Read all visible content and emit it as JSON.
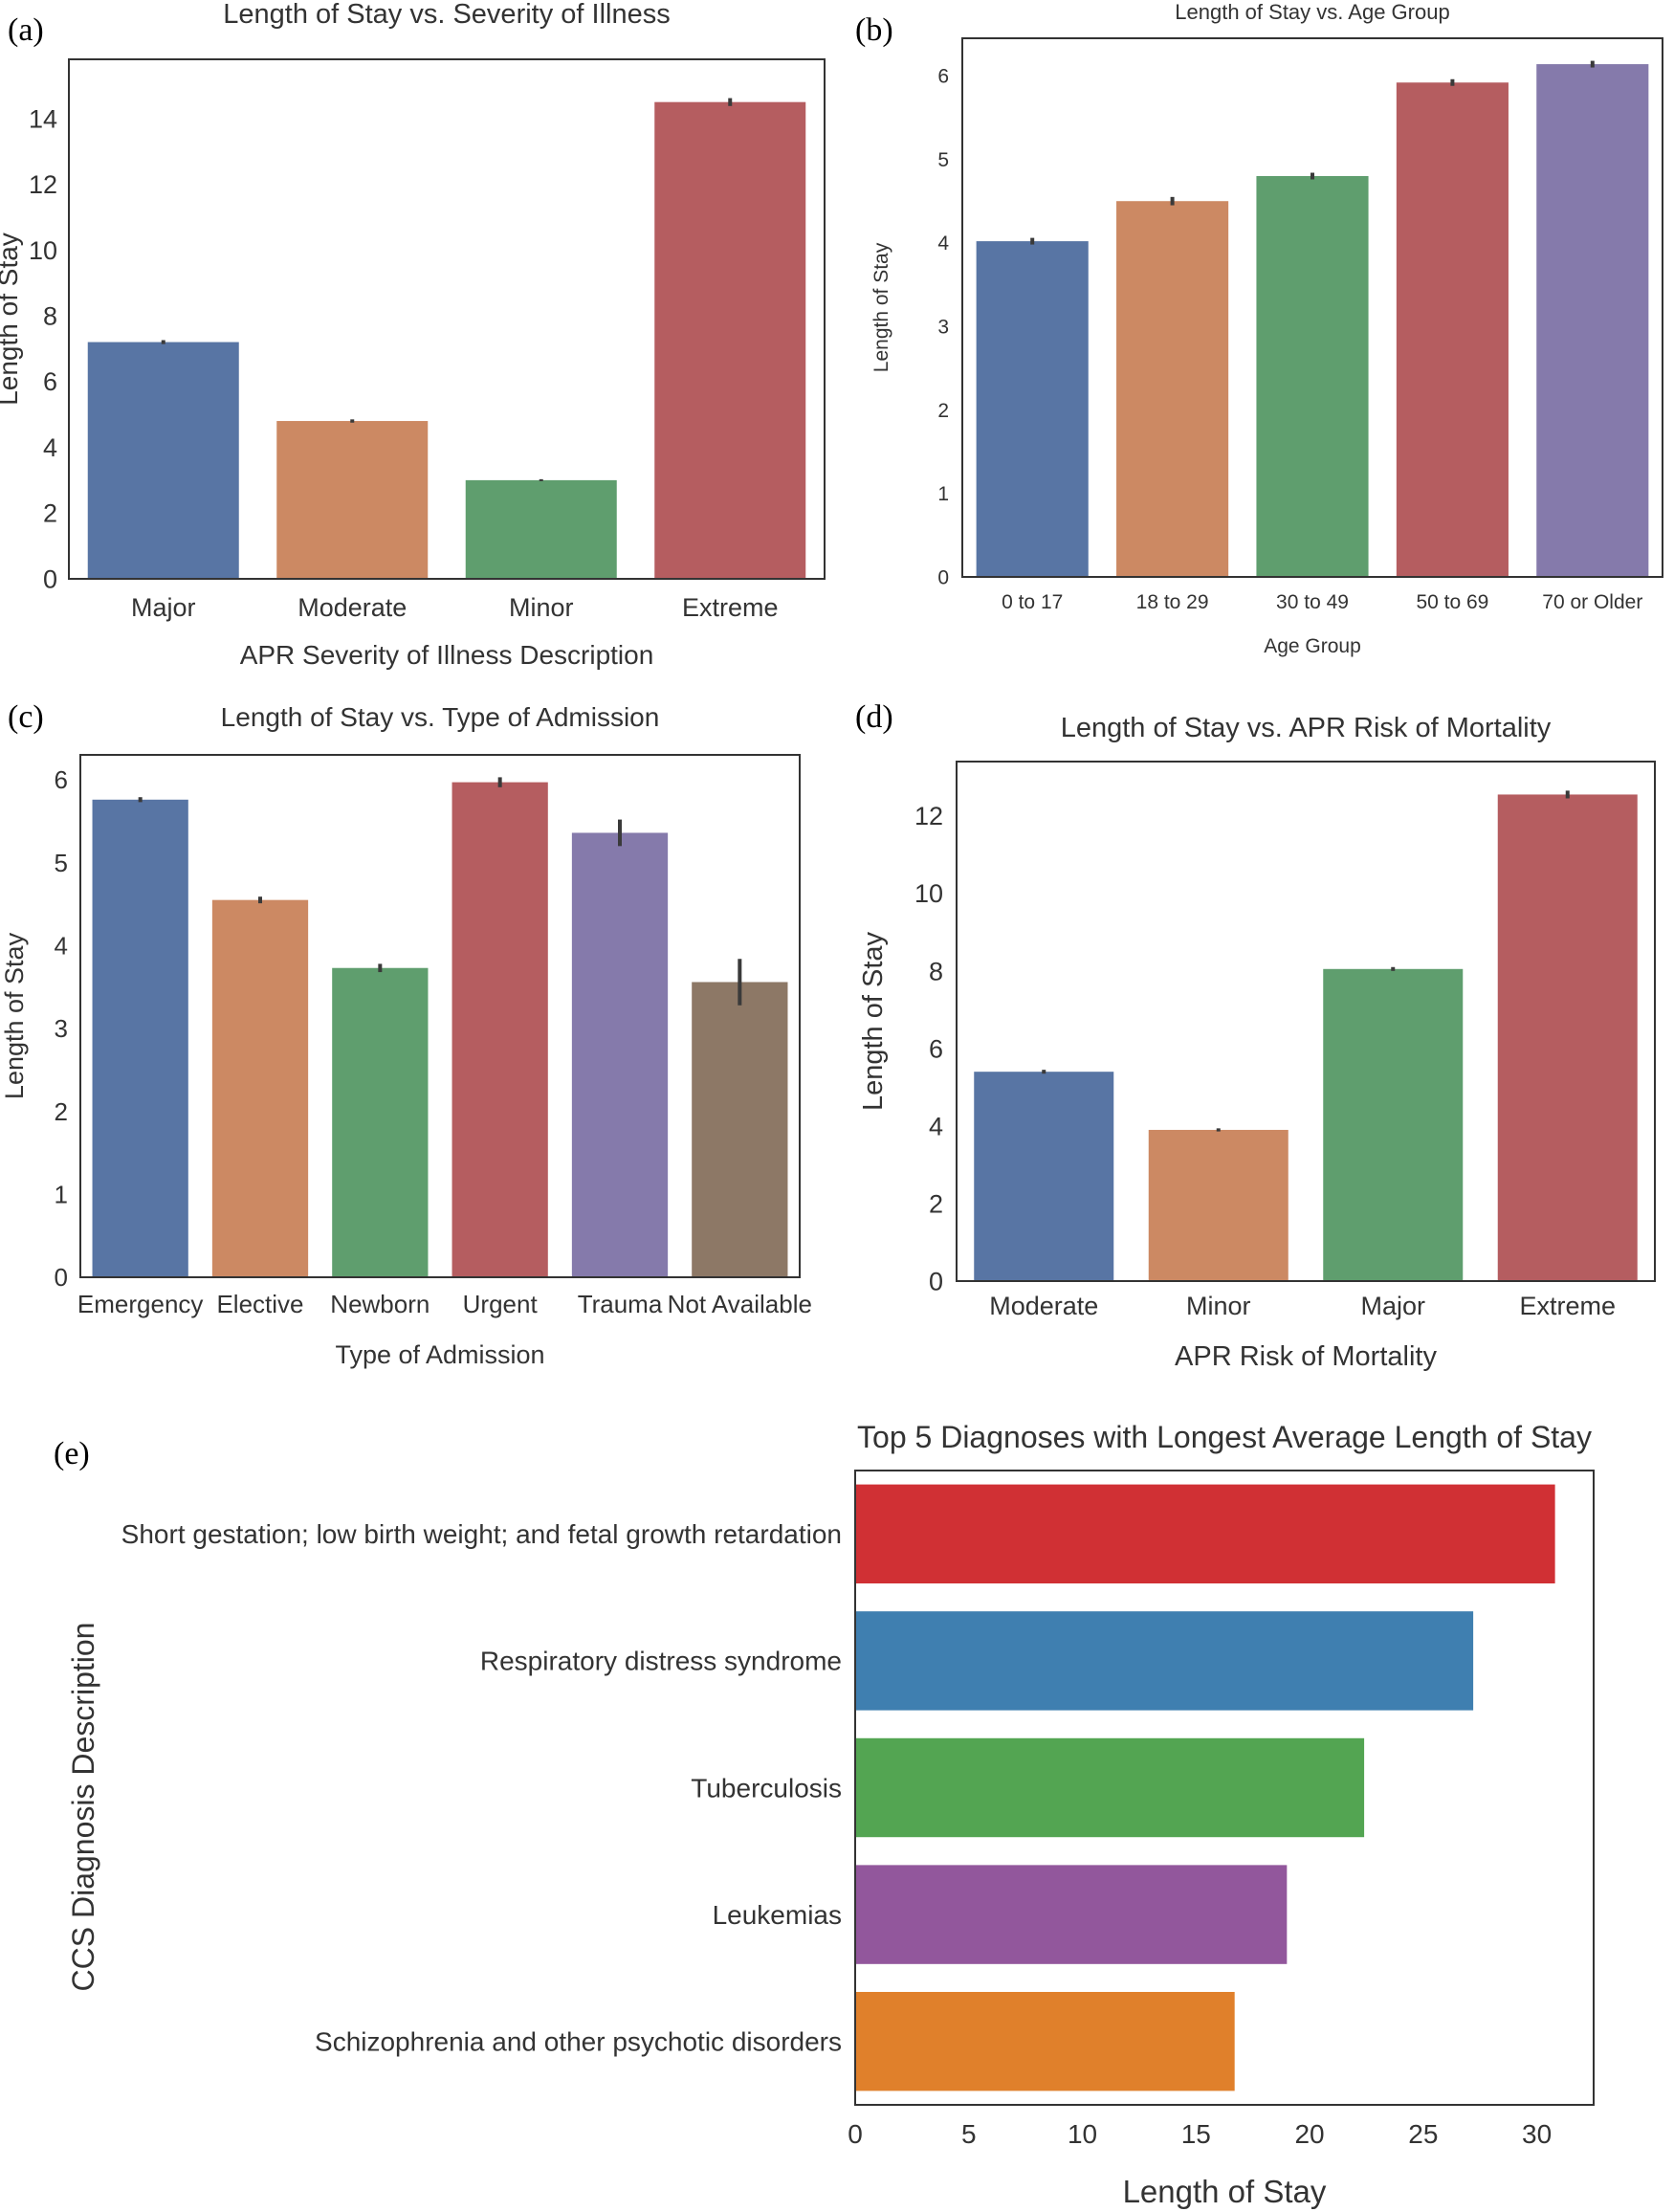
{
  "figure": {
    "background": "#ffffff"
  },
  "chart_data": [
    {
      "id": "a",
      "panel_label": "(a)",
      "type": "bar",
      "title": "Length of Stay vs. Severity of Illness",
      "xlabel": "APR Severity of Illness Description",
      "ylabel": "Length of Stay",
      "categories": [
        "Major",
        "Moderate",
        "Minor",
        "Extreme"
      ],
      "values": [
        7.2,
        4.8,
        3.0,
        14.5
      ],
      "errors": [
        0.06,
        0.05,
        0.03,
        0.12
      ],
      "colors": [
        "#5875a4",
        "#cc8963",
        "#5f9e6e",
        "#b55d60"
      ],
      "ylim": [
        0,
        15.8
      ],
      "yticks": [
        0,
        2,
        4,
        6,
        8,
        10,
        12,
        14
      ],
      "grid": false
    },
    {
      "id": "b",
      "panel_label": "(b)",
      "type": "bar",
      "title": "Length of Stay vs. Age Group",
      "xlabel": "Age Group",
      "ylabel": "Length of Stay",
      "categories": [
        "0 to 17",
        "18 to 29",
        "30 to 49",
        "50 to 69",
        "70 or Older"
      ],
      "values": [
        4.02,
        4.5,
        4.8,
        5.92,
        6.14
      ],
      "errors": [
        0.04,
        0.05,
        0.04,
        0.04,
        0.04
      ],
      "colors": [
        "#5875a4",
        "#cc8963",
        "#5f9e6e",
        "#b55d60",
        "#857aab"
      ],
      "ylim": [
        0,
        6.45
      ],
      "yticks": [
        0,
        1,
        2,
        3,
        4,
        5,
        6
      ],
      "grid": false
    },
    {
      "id": "c",
      "panel_label": "(c)",
      "type": "bar",
      "title": "Length of Stay vs. Type of Admission",
      "xlabel": "Type of Admission",
      "ylabel": "Length of Stay",
      "categories": [
        "Emergency",
        "Elective",
        "Newborn",
        "Urgent",
        "Trauma",
        "Not Available"
      ],
      "values": [
        5.76,
        4.55,
        3.73,
        5.97,
        5.36,
        3.56
      ],
      "errors": [
        0.03,
        0.04,
        0.05,
        0.06,
        0.16,
        0.28
      ],
      "colors": [
        "#5875a4",
        "#cc8963",
        "#5f9e6e",
        "#b55d60",
        "#857aab",
        "#8d7866"
      ],
      "ylim": [
        0,
        6.3
      ],
      "yticks": [
        0,
        1,
        2,
        3,
        4,
        5,
        6
      ],
      "grid": false
    },
    {
      "id": "d",
      "panel_label": "(d)",
      "type": "bar",
      "title": "Length of Stay vs. APR Risk of Mortality",
      "xlabel": "APR Risk of Mortality",
      "ylabel": "Length of Stay",
      "categories": [
        "Moderate",
        "Minor",
        "Major",
        "Extreme"
      ],
      "values": [
        5.4,
        3.9,
        8.05,
        12.55
      ],
      "errors": [
        0.05,
        0.04,
        0.05,
        0.1
      ],
      "colors": [
        "#5875a4",
        "#cc8963",
        "#5f9e6e",
        "#b55d60"
      ],
      "ylim": [
        0,
        13.4
      ],
      "yticks": [
        0,
        2,
        4,
        6,
        8,
        10,
        12
      ],
      "grid": false
    },
    {
      "id": "e",
      "panel_label": "(e)",
      "type": "bar",
      "orientation": "horizontal",
      "title": "Top 5 Diagnoses with Longest Average Length of Stay",
      "xlabel": "Length of Stay",
      "ylabel": "CCS Diagnosis Description",
      "categories": [
        "Short gestation; low birth weight; and fetal growth retardation",
        "Respiratory distress syndrome",
        "Tuberculosis",
        "Leukemias",
        "Schizophrenia and other psychotic disorders"
      ],
      "values": [
        30.8,
        27.2,
        22.4,
        19.0,
        16.7
      ],
      "colors": [
        "#d03034",
        "#3f7fb0",
        "#53a552",
        "#92579c",
        "#e0802b"
      ],
      "xlim": [
        0,
        32.5
      ],
      "xticks": [
        0,
        5,
        10,
        15,
        20,
        25,
        30
      ],
      "grid": false
    }
  ]
}
